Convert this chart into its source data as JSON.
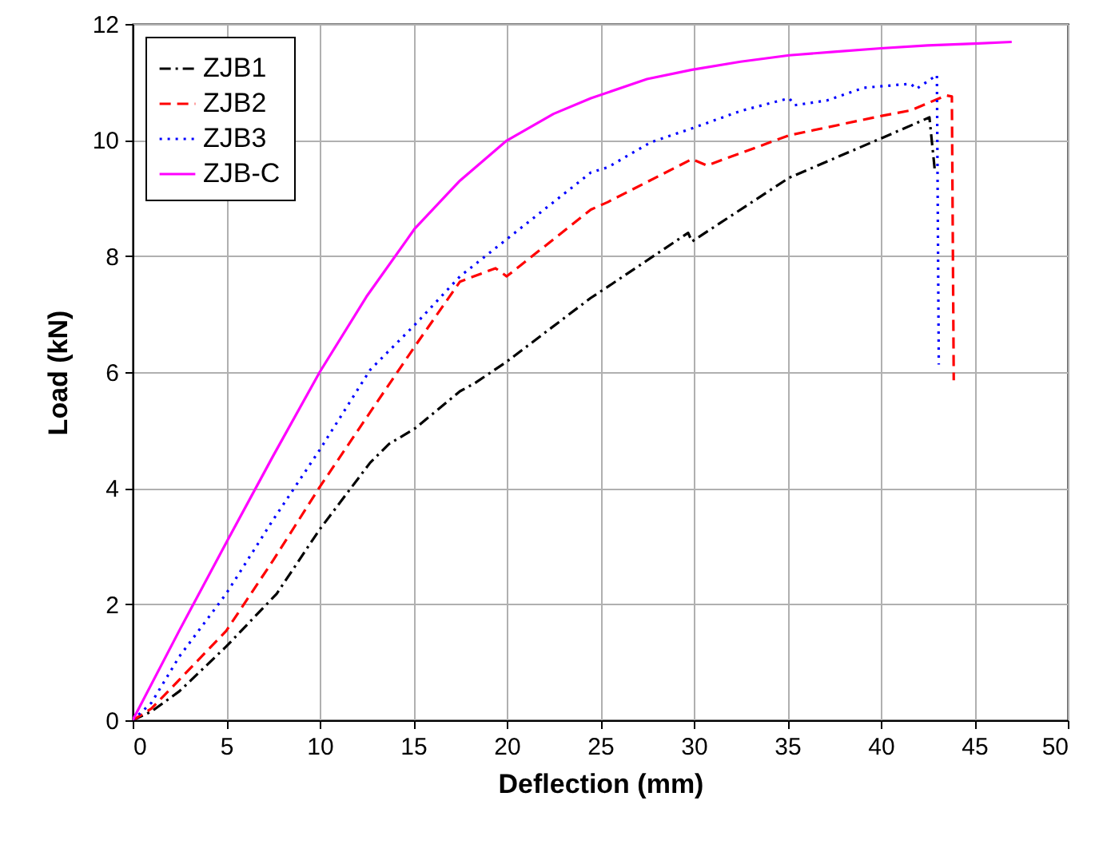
{
  "chart_data": {
    "type": "line",
    "xlabel": "Deflection (mm)",
    "ylabel": "Load (kN)",
    "xlim": [
      0,
      50
    ],
    "ylim": [
      0,
      12
    ],
    "xticks": [
      0,
      5,
      10,
      15,
      20,
      25,
      30,
      35,
      40,
      45,
      50
    ],
    "yticks": [
      0,
      2,
      4,
      6,
      8,
      10,
      12
    ],
    "grid": true,
    "legend": "top left",
    "marker": "none",
    "series": [
      {
        "name": "ZJB1",
        "color": "#000000",
        "line_style": "dashdot",
        "x": [
          0,
          1,
          2.5,
          5,
          7.7,
          10,
          12.7,
          13.7,
          15.1,
          17.5,
          18.3,
          20,
          24.5,
          25.4,
          29.7,
          29.9,
          35.1,
          40.1,
          42.6,
          42.9
        ],
        "values": [
          0,
          0.15,
          0.5,
          1.27,
          2.18,
          3.29,
          4.44,
          4.76,
          5.03,
          5.67,
          5.81,
          6.18,
          7.28,
          7.47,
          8.4,
          8.25,
          9.35,
          10.04,
          10.39,
          9.44
        ]
      },
      {
        "name": "ZJB2",
        "color": "#ff0000",
        "line_style": "dashed",
        "x": [
          0,
          1,
          2.5,
          5,
          7.5,
          10,
          12.7,
          15.1,
          17.5,
          19.4,
          20,
          24.5,
          25.4,
          29.9,
          30.7,
          35.1,
          40.1,
          41.6,
          43.5,
          43.8,
          43.9
        ],
        "values": [
          0,
          0.2,
          0.7,
          1.54,
          2.75,
          4.02,
          5.31,
          6.45,
          7.56,
          7.79,
          7.65,
          8.8,
          8.93,
          9.67,
          9.56,
          10.08,
          10.42,
          10.51,
          10.77,
          10.75,
          5.86
        ]
      },
      {
        "name": "ZJB3",
        "color": "#0000ff",
        "line_style": "dotted",
        "x": [
          0,
          1,
          2.5,
          5,
          7.5,
          10,
          12.7,
          15.1,
          17.5,
          20,
          24.5,
          25.4,
          27.7,
          29.9,
          32.5,
          35.1,
          35.4,
          37.1,
          39.1,
          41.6,
          41.9,
          43,
          43.1
        ],
        "values": [
          0,
          0.3,
          1.1,
          2.18,
          3.45,
          4.66,
          6.04,
          6.82,
          7.65,
          8.29,
          9.44,
          9.53,
          9.96,
          10.2,
          10.5,
          10.72,
          10.6,
          10.68,
          10.9,
          10.97,
          10.88,
          11.12,
          6.13
        ]
      },
      {
        "name": "ZJB-C",
        "color": "#ff00ff",
        "line_style": "solid",
        "x": [
          0,
          2.5,
          5,
          7.5,
          10,
          12.5,
          15.1,
          17.5,
          20,
          22.5,
          24.5,
          27.5,
          29.9,
          32.5,
          35.1,
          37.5,
          40,
          42.5,
          45,
          47
        ],
        "values": [
          0,
          1.55,
          3.06,
          4.55,
          6.0,
          7.3,
          8.48,
          9.3,
          9.99,
          10.45,
          10.72,
          11.05,
          11.21,
          11.35,
          11.46,
          11.52,
          11.58,
          11.63,
          11.66,
          11.69
        ]
      }
    ]
  }
}
